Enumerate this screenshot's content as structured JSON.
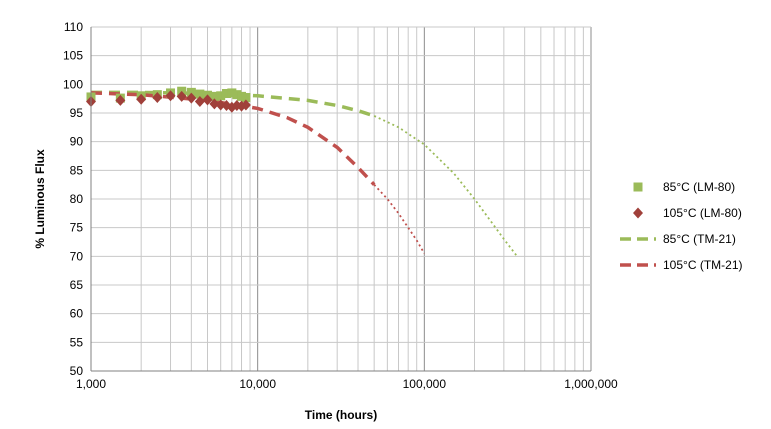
{
  "chart_data": {
    "type": "scatter",
    "title": "",
    "xlabel": "Time (hours)",
    "ylabel": "% Luminous Flux",
    "x_scale": "log",
    "xlim": [
      1000,
      1000000
    ],
    "ylim": [
      50,
      110
    ],
    "x_ticks": [
      1000,
      10000,
      100000,
      1000000
    ],
    "x_tick_labels": [
      "1,000",
      "10,000",
      "100,000",
      "1,000,000"
    ],
    "y_ticks": [
      50,
      55,
      60,
      65,
      70,
      75,
      80,
      85,
      90,
      95,
      100,
      105,
      110
    ],
    "y_tick_labels": [
      "50",
      "55",
      "60",
      "65",
      "70",
      "75",
      "80",
      "85",
      "90",
      "95",
      "100",
      "105",
      "110"
    ],
    "grid": true,
    "legend_position": "right",
    "series": [
      {
        "name": "85°C (LM-80)",
        "type": "scatter",
        "marker": "square",
        "color": "#9BBB59",
        "x": [
          1000,
          1500,
          2000,
          2500,
          3000,
          3500,
          4000,
          4500,
          5000,
          5500,
          6000,
          6500,
          7000,
          7500,
          8000,
          8500
        ],
        "y": [
          97.8,
          97.6,
          98.0,
          98.2,
          98.5,
          98.8,
          98.6,
          98.3,
          98.1,
          97.9,
          98.0,
          98.4,
          98.5,
          98.2,
          97.9,
          97.7
        ]
      },
      {
        "name": "105°C (LM-80)",
        "type": "scatter",
        "marker": "diamond",
        "color": "#A0403A",
        "x": [
          1000,
          1500,
          2000,
          2500,
          3000,
          3500,
          4000,
          4500,
          5000,
          5500,
          6000,
          6500,
          7000,
          7500,
          8000,
          8500
        ],
        "y": [
          97.0,
          97.2,
          97.4,
          97.7,
          98.0,
          97.9,
          97.6,
          97.0,
          97.3,
          96.6,
          96.4,
          96.3,
          96.0,
          96.3,
          96.2,
          96.4
        ]
      },
      {
        "name": "85°C (TM-21)",
        "type": "line",
        "style": "dashed",
        "color": "#9BBB59",
        "x": [
          1000,
          2000,
          5000,
          10000,
          20000,
          30000,
          40000,
          50000
        ],
        "y": [
          98.6,
          98.6,
          98.4,
          98.0,
          97.2,
          96.3,
          95.4,
          94.5
        ]
      },
      {
        "name": "",
        "type": "line",
        "style": "dotted",
        "color": "#9BBB59",
        "x": [
          50000,
          70000,
          100000,
          150000,
          200000,
          300000,
          360000
        ],
        "y": [
          94.5,
          92.5,
          89.5,
          84.5,
          80.0,
          73.0,
          70.0
        ]
      },
      {
        "name": "105°C (TM-21)",
        "type": "line",
        "style": "dashed",
        "color": "#C0504D",
        "x": [
          1000,
          2000,
          5000,
          10000,
          15000,
          20000,
          30000,
          40000,
          50000
        ],
        "y": [
          98.5,
          98.2,
          97.2,
          95.8,
          94.2,
          92.5,
          89.0,
          85.5,
          82.5
        ]
      },
      {
        "name": "",
        "type": "line",
        "style": "dotted",
        "color": "#C0504D",
        "x": [
          50000,
          60000,
          70000,
          80000,
          90000,
          100000
        ],
        "y": [
          82.5,
          80.0,
          77.5,
          75.0,
          72.8,
          70.5
        ]
      }
    ]
  }
}
